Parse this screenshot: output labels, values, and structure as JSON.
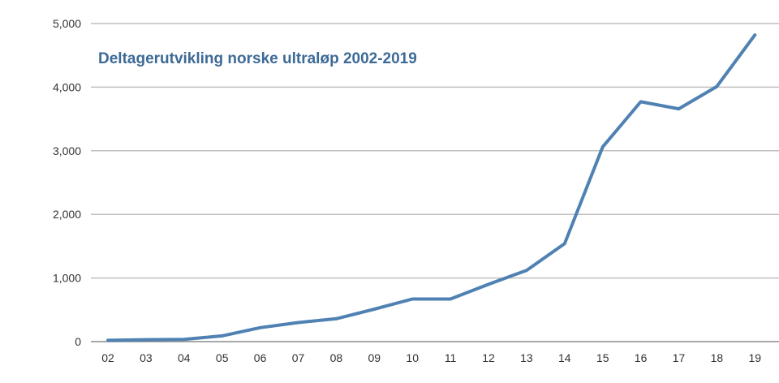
{
  "chart_data": {
    "type": "line",
    "title": "Deltagerutvikling norske ultraløp 2002-2019",
    "xlabel": "",
    "ylabel": "",
    "categories": [
      "02",
      "03",
      "04",
      "05",
      "06",
      "07",
      "08",
      "09",
      "10",
      "11",
      "12",
      "13",
      "14",
      "15",
      "16",
      "17",
      "18",
      "19"
    ],
    "series": [
      {
        "values": [
          20,
          30,
          35,
          90,
          220,
          300,
          360,
          510,
          670,
          670,
          900,
          1120,
          1540,
          3060,
          3770,
          3660,
          4010,
          4820
        ]
      }
    ],
    "ylim": [
      0,
      5000
    ],
    "yticks": [
      0,
      1000,
      2000,
      3000,
      4000,
      5000
    ],
    "ytick_labels": [
      "0",
      "1,000",
      "2,000",
      "3,000",
      "4,000",
      "5,000"
    ],
    "grid": true,
    "legend": "none",
    "colors": {
      "line": "#4f81b3",
      "title": "#3d6a97",
      "grid": "#bfbfbf",
      "axis": "#8c8c8c"
    }
  }
}
